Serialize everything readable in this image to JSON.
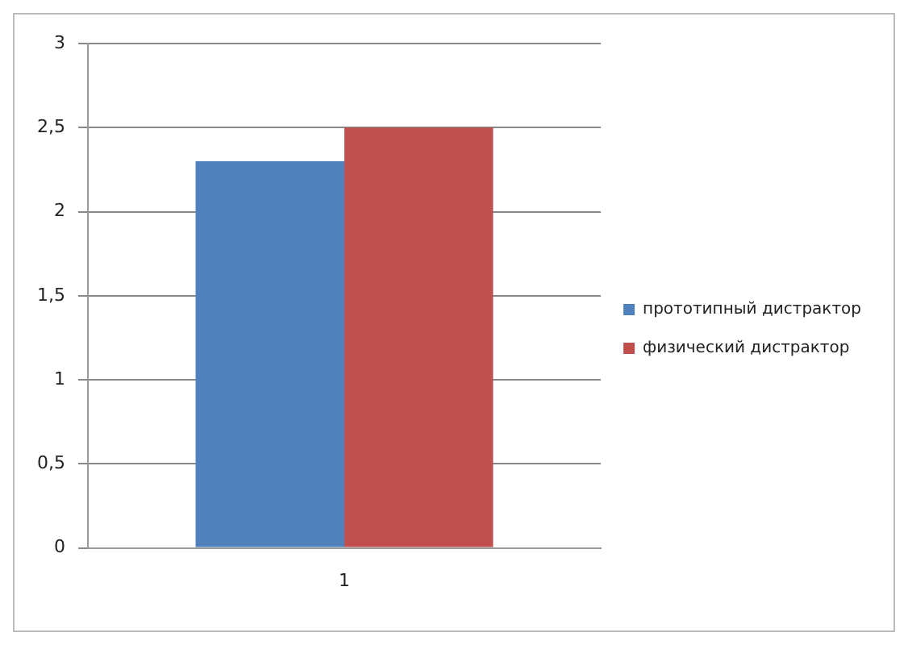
{
  "chart_data": {
    "type": "bar",
    "categories": [
      "1"
    ],
    "series": [
      {
        "name": "прототипный дистрактор",
        "color": "#4f81bd",
        "values": [
          2.3
        ]
      },
      {
        "name": "физический дистрактор",
        "color": "#c0504d",
        "values": [
          2.5
        ]
      }
    ],
    "ylim": [
      0,
      3
    ],
    "yticks": [
      {
        "value": 0,
        "label": "0"
      },
      {
        "value": 0.5,
        "label": "0,5"
      },
      {
        "value": 1,
        "label": "1"
      },
      {
        "value": 1.5,
        "label": "1,5"
      },
      {
        "value": 2,
        "label": "2"
      },
      {
        "value": 2.5,
        "label": "2,5"
      },
      {
        "value": 3,
        "label": "3"
      }
    ],
    "grid": "y",
    "legend": "right"
  }
}
